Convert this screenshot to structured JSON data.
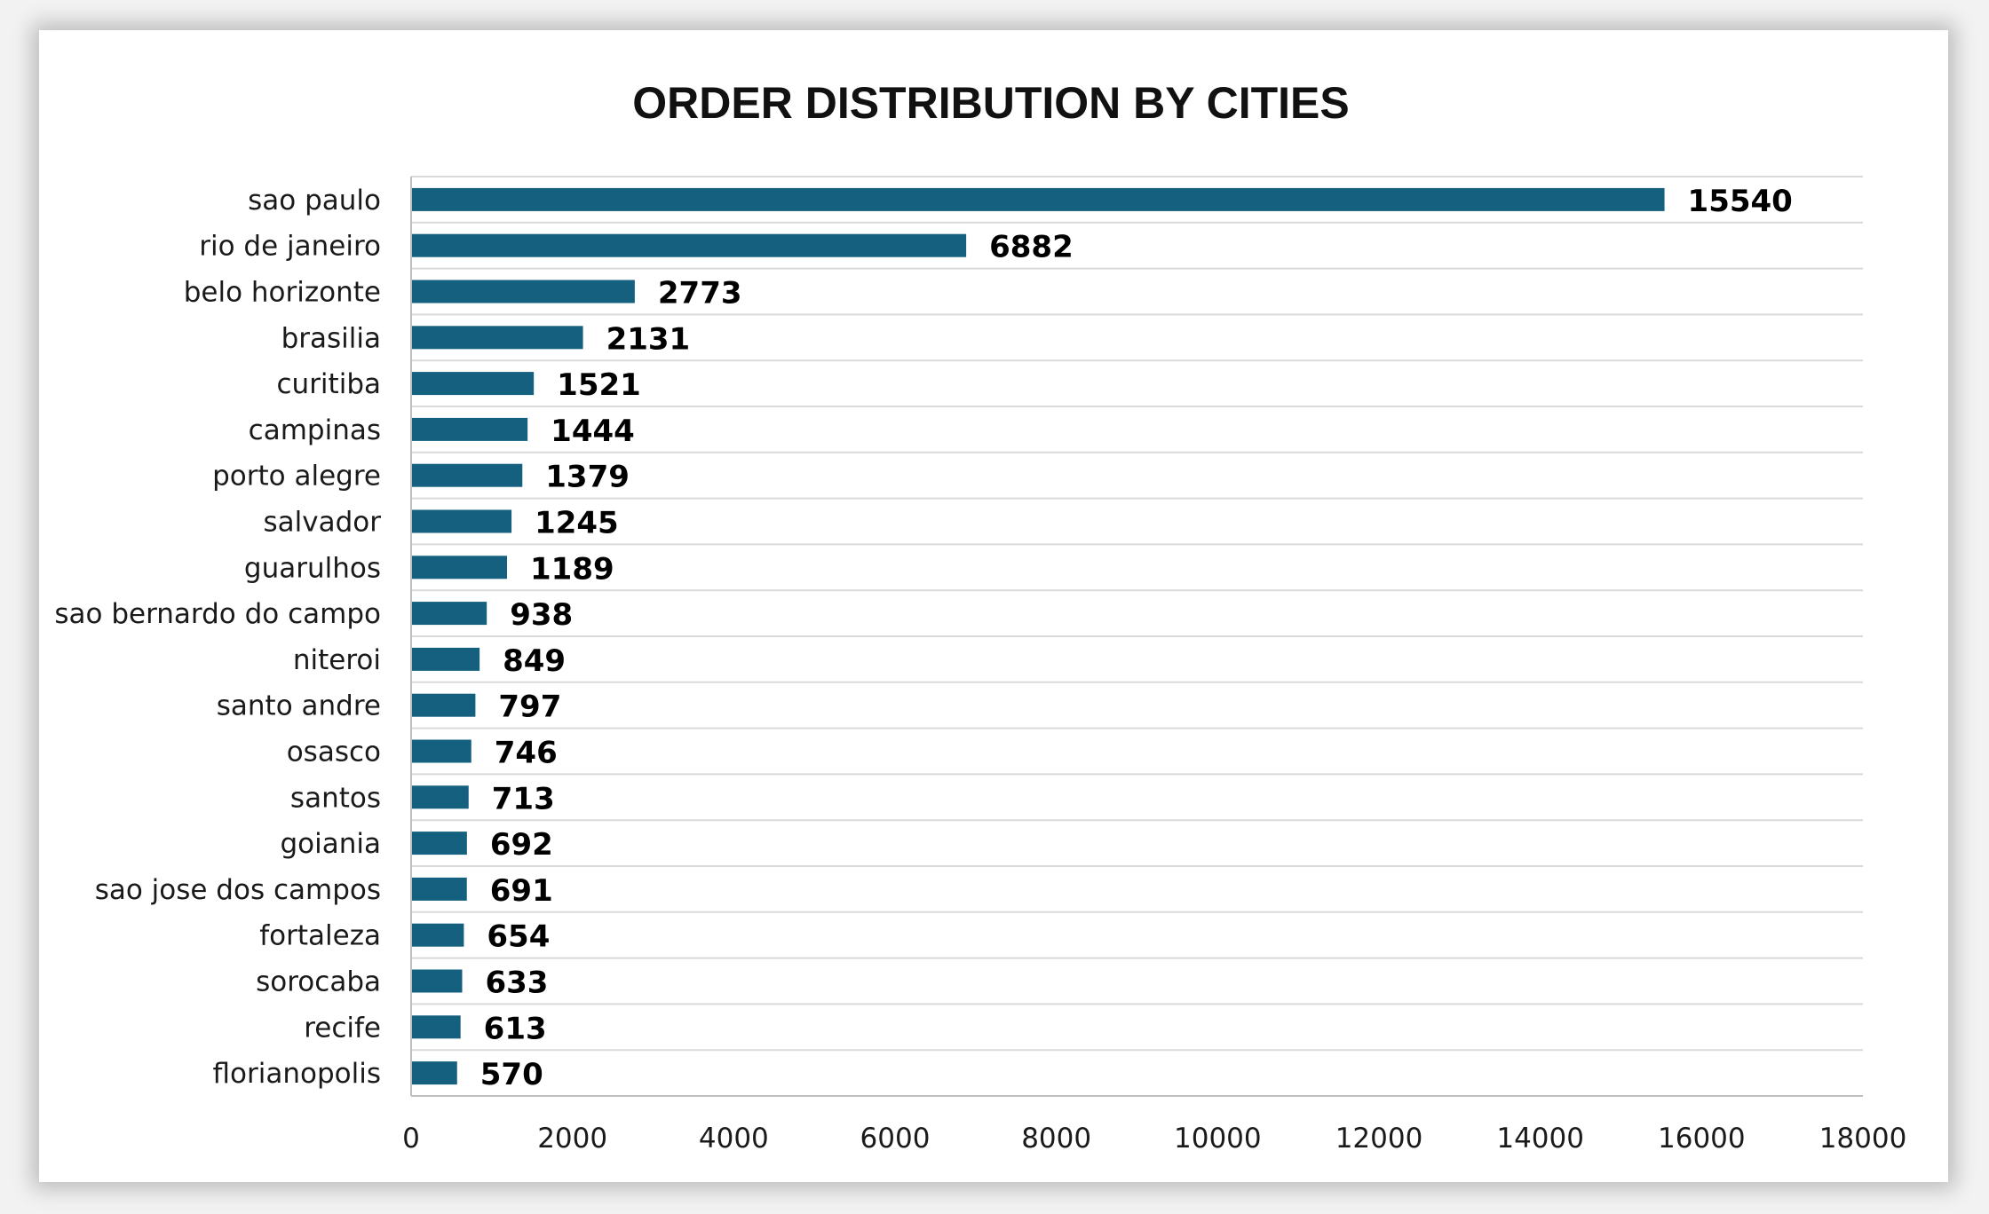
{
  "colors": {
    "bar": "#16607f",
    "gridline": "#d9d9d9",
    "axis": "#bfbfbf"
  },
  "chart_data": {
    "type": "bar",
    "orientation": "horizontal",
    "title": "ORDER DISTRIBUTION BY CITIES",
    "xlabel": "",
    "ylabel": "",
    "xlim": [
      0,
      18000
    ],
    "x_ticks": [
      0,
      2000,
      4000,
      6000,
      8000,
      10000,
      12000,
      14000,
      16000,
      18000
    ],
    "grid": "horizontal-category-lines",
    "legend": "none",
    "data_labels": true,
    "categories": [
      "sao paulo",
      "rio de janeiro",
      "belo horizonte",
      "brasilia",
      "curitiba",
      "campinas",
      "porto alegre",
      "salvador",
      "guarulhos",
      "sao bernardo do campo",
      "niteroi",
      "santo andre",
      "osasco",
      "santos",
      "goiania",
      "sao jose dos campos",
      "fortaleza",
      "sorocaba",
      "recife",
      "florianopolis"
    ],
    "values": [
      15540,
      6882,
      2773,
      2131,
      1521,
      1444,
      1379,
      1245,
      1189,
      938,
      849,
      797,
      746,
      713,
      692,
      691,
      654,
      633,
      613,
      570
    ]
  }
}
